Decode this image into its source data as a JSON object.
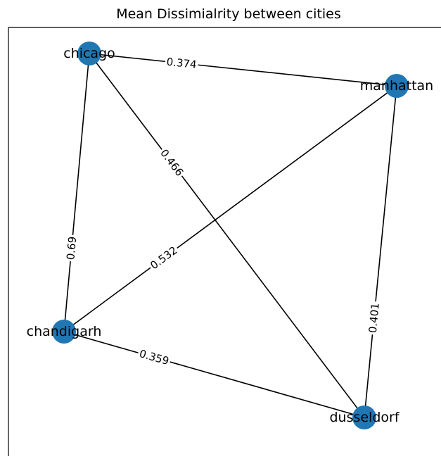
{
  "title": "Mean Dissimialrity between cities",
  "nodes": [
    {
      "label": "chicago"
    },
    {
      "label": "manhattan"
    },
    {
      "label": "chandigarh"
    },
    {
      "label": "dusseldorf"
    }
  ],
  "edges": [
    {
      "source": "chicago",
      "target": "manhattan",
      "label": 0.374
    },
    {
      "source": "chicago",
      "target": "dusseldorf",
      "label": 0.466
    },
    {
      "source": "chandigarh",
      "target": "chicago",
      "label": 0.69
    },
    {
      "source": "chandigarh",
      "target": "manhattan",
      "label": 0.532
    },
    {
      "source": "dusseldorf",
      "target": "manhattan",
      "label": 0.401
    },
    {
      "source": "chandigarh",
      "target": "dusseldorf",
      "label": 0.359
    }
  ]
}
